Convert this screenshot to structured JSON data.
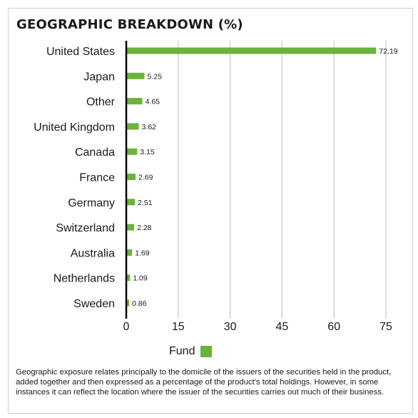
{
  "colors": {
    "bar": "#6bb33a",
    "axis": "#000000",
    "grid": "#c8c8c8",
    "text": "#1a1a1a"
  },
  "footnote": "Geographic exposure relates principally to the domicile of the issuers of the securities held in the product, added together and then expressed as a percentage of the product's total holdings. However, in some instances it can reflect the location where the issuer of the securities carries out much of their business.",
  "chart_data": {
    "type": "bar",
    "orientation": "horizontal",
    "title": "GEOGRAPHIC BREAKDOWN (%)",
    "categories": [
      "United States",
      "Japan",
      "Other",
      "United Kingdom",
      "Canada",
      "France",
      "Germany",
      "Switzerland",
      "Australia",
      "Netherlands",
      "Sweden"
    ],
    "series": [
      {
        "name": "Fund",
        "values": [
          72.19,
          5.25,
          4.65,
          3.62,
          3.15,
          2.69,
          2.51,
          2.28,
          1.69,
          1.09,
          0.86
        ],
        "value_labels": [
          "72.19",
          "5.25",
          "4.65",
          "3.62",
          "3.15",
          "2.69",
          "2.51",
          "2.28",
          "1.69",
          "1.09",
          "0.86"
        ]
      }
    ],
    "xlim": [
      0,
      75
    ],
    "xticks": [
      0,
      15,
      30,
      45,
      60,
      75
    ],
    "xtick_labels": [
      "0",
      "15",
      "30",
      "45",
      "60",
      "75"
    ],
    "grid": "vertical",
    "legend_position": "bottom-center",
    "xlabel": "",
    "ylabel": ""
  }
}
